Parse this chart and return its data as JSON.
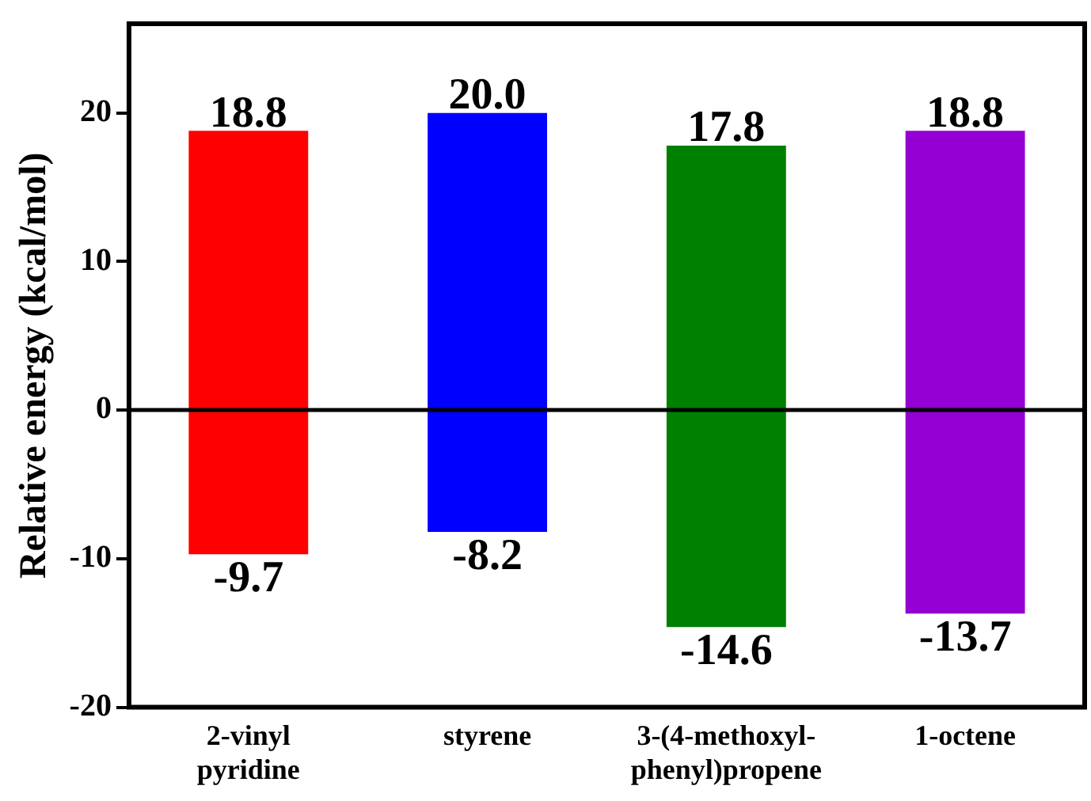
{
  "chart_data": {
    "type": "bar",
    "ylabel": "Relative energy (kcal/mol)",
    "categories": [
      "2-vinyl pyridine",
      "styrene",
      "3-(4-methoxyl-phenyl)propene",
      "1-octene"
    ],
    "series": [
      {
        "values": [
          18.8,
          20.0,
          17.8,
          18.8
        ],
        "value_labels": [
          "18.8",
          "20.0",
          "17.8",
          "18.8"
        ],
        "colors": [
          "#ff0000",
          "#0000ff",
          "#008000",
          "#9400d3"
        ]
      },
      {
        "values": [
          -9.7,
          -8.2,
          -14.6,
          -13.7
        ],
        "value_labels": [
          "-9.7",
          "-8.2",
          "-14.6",
          "-13.7"
        ],
        "colors": [
          "#ff0000",
          "#0000ff",
          "#008000",
          "#9400d3"
        ]
      }
    ],
    "stacked": true,
    "ylim": [
      -20,
      26
    ],
    "yticks": [
      -20,
      -10,
      0,
      10,
      20
    ],
    "grid": false,
    "legend": false,
    "ref_lines": [
      {
        "axis": "y",
        "value": 0
      }
    ]
  }
}
